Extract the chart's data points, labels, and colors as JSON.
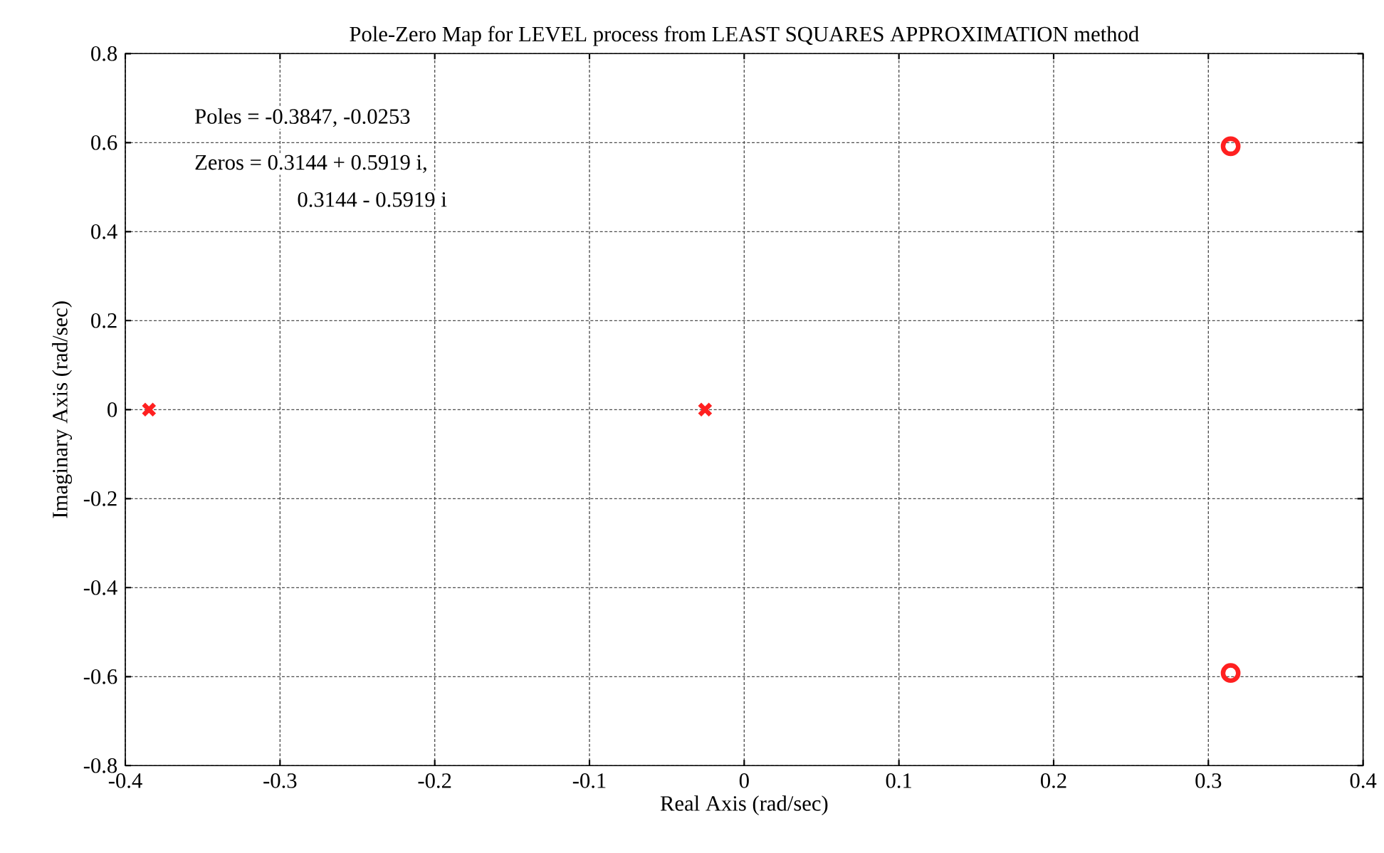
{
  "chart_data": {
    "type": "scatter",
    "title": "Pole-Zero Map for LEVEL process from LEAST SQUARES APPROXIMATION method",
    "xlabel": "Real Axis (rad/sec)",
    "ylabel": "Imaginary Axis (rad/sec)",
    "series": [
      {
        "x": [
          -0.3847,
          -0.0253
        ],
        "values": [
          0,
          0
        ],
        "color": "#ff2020",
        "marker": "cross"
      },
      {
        "x": [
          0.3144,
          0.3144
        ],
        "values": [
          0.5919,
          -0.5919
        ],
        "color": "#ff2020",
        "marker": "circle"
      }
    ],
    "xlim": [
      -0.4,
      0.4
    ],
    "xticks": [
      -0.4,
      -0.3,
      -0.2,
      -0.1,
      0,
      0.1,
      0.2,
      0.3,
      0.4
    ],
    "ylim": [
      -0.8,
      0.8
    ],
    "yticks": [
      -0.8,
      -0.6,
      -0.4,
      -0.2,
      0,
      0.2,
      0.4,
      0.6,
      0.8
    ],
    "grid": true,
    "annotations": [
      "Poles = -0.3847, -0.0253",
      "Zeros = 0.3144 + 0.5919 i,",
      "0.3144 - 0.5919 i"
    ]
  }
}
